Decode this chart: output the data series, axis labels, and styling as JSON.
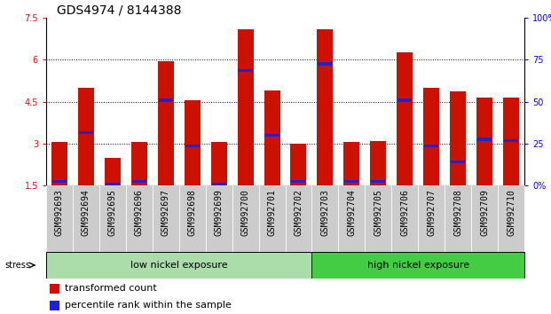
{
  "title": "GDS4974 / 8144388",
  "samples": [
    "GSM992693",
    "GSM992694",
    "GSM992695",
    "GSM992696",
    "GSM992697",
    "GSM992698",
    "GSM992699",
    "GSM992700",
    "GSM992701",
    "GSM992702",
    "GSM992703",
    "GSM992704",
    "GSM992705",
    "GSM992706",
    "GSM992707",
    "GSM992708",
    "GSM992709",
    "GSM992710"
  ],
  "red_values": [
    3.05,
    5.0,
    2.5,
    3.05,
    5.95,
    4.55,
    3.05,
    7.1,
    4.9,
    3.0,
    7.1,
    3.05,
    3.1,
    6.25,
    5.0,
    4.85,
    4.65,
    4.65
  ],
  "blue_values": [
    1.65,
    3.4,
    1.55,
    1.65,
    4.55,
    2.9,
    1.55,
    5.6,
    3.3,
    1.65,
    5.85,
    1.65,
    1.65,
    4.55,
    2.9,
    2.35,
    3.15,
    3.1
  ],
  "ylim_left": [
    1.5,
    7.5
  ],
  "ylim_right": [
    0,
    100
  ],
  "yticks_left": [
    1.5,
    3.0,
    4.5,
    6.0,
    7.5
  ],
  "yticks_right": [
    0,
    25,
    50,
    75,
    100
  ],
  "ytick_labels_left": [
    "1.5",
    "3",
    "4.5",
    "6",
    "7.5"
  ],
  "ytick_labels_right": [
    "0%",
    "25",
    "50",
    "75",
    "100%"
  ],
  "group1_label": "low nickel exposure",
  "group2_label": "high nickel exposure",
  "group1_count": 10,
  "group1_color": "#aaddaa",
  "group2_color": "#44cc44",
  "stress_label": "stress",
  "legend_red": "transformed count",
  "legend_blue": "percentile rank within the sample",
  "bar_color": "#cc1100",
  "dot_color": "#2222cc",
  "background_color": "#ffffff",
  "tick_bg_color": "#cccccc",
  "bar_width": 0.6,
  "base_value": 1.5,
  "title_fontsize": 10,
  "tick_fontsize": 7,
  "label_fontsize": 8,
  "legend_fontsize": 8
}
